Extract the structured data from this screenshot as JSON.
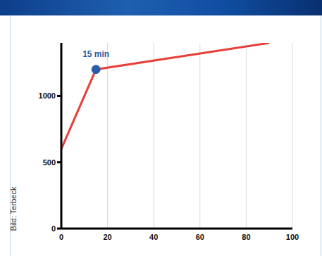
{
  "chart_data": {
    "type": "line",
    "x": [
      0,
      15,
      90
    ],
    "values": [
      600,
      1200,
      1400
    ],
    "color": "#e5403a",
    "xlim": [
      0,
      100
    ],
    "xticks": [
      0,
      20,
      40,
      60,
      80,
      100
    ],
    "ylim": [
      0,
      1400
    ],
    "yticks": [
      0,
      500,
      1000
    ],
    "grid": true,
    "annotations": [
      {
        "text": "15 min",
        "x": 15,
        "y": 1200,
        "color": "#2a5caa"
      }
    ],
    "credit": "Bild: Terbeck"
  }
}
